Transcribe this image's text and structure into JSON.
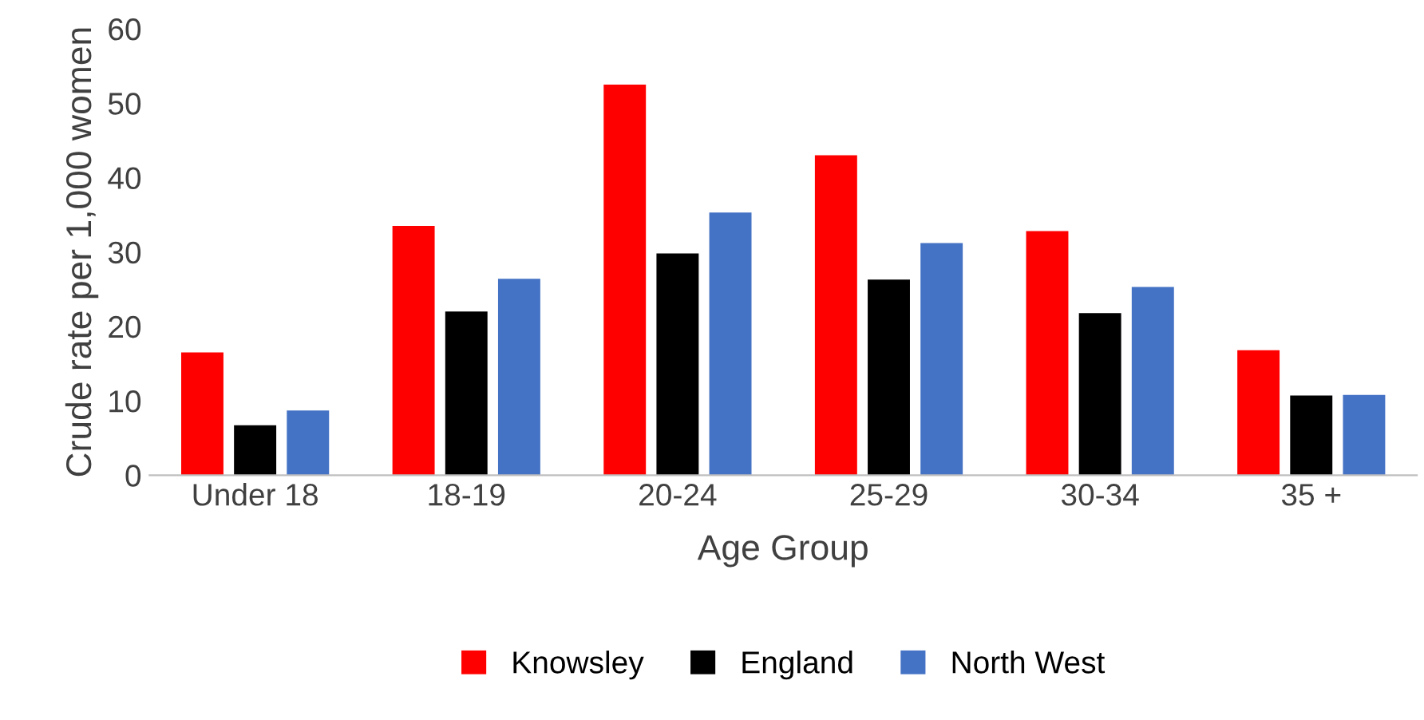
{
  "chart_data": {
    "type": "bar",
    "xlabel": "Age Group",
    "ylabel": "Crude rate per 1,000 women",
    "categories": [
      "Under 18",
      "18-19",
      "20-24",
      "25-29",
      "30-34",
      "35 +"
    ],
    "series": [
      {
        "name": "Knowsley",
        "color": "#ff0000",
        "values": [
          16.5,
          33.5,
          52.5,
          43,
          32.8,
          16.8
        ]
      },
      {
        "name": "England",
        "color": "#000000",
        "values": [
          6.7,
          22,
          29.8,
          26.3,
          21.8,
          10.7
        ]
      },
      {
        "name": "North West",
        "color": "#4472c4",
        "values": [
          8.7,
          26.4,
          35.3,
          31.2,
          25.3,
          10.8
        ]
      }
    ],
    "ylim": [
      0,
      60
    ],
    "yticks": [
      0,
      10,
      20,
      30,
      40,
      50,
      60
    ],
    "grid": false,
    "legend": "bottom"
  }
}
